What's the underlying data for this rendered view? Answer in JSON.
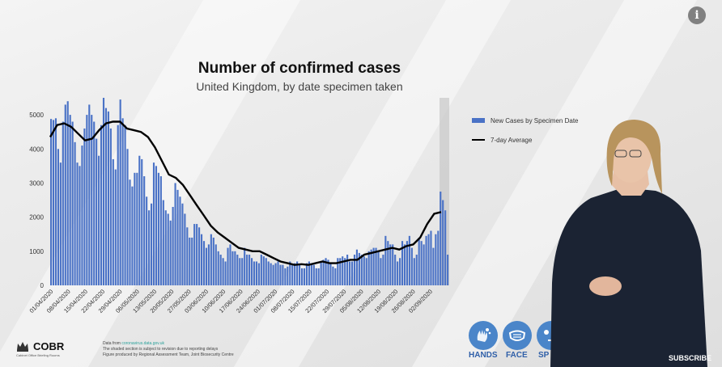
{
  "chart_data": {
    "type": "bar",
    "title": "Number of confirmed cases",
    "subtitle": "United Kingdom, by date specimen taken",
    "ylim": [
      0,
      5500
    ],
    "yticks": [
      0,
      1000,
      2000,
      3000,
      4000,
      5000
    ],
    "x_tick_labels": [
      "01/04/2020",
      "08/04/2020",
      "15/04/2020",
      "22/04/2020",
      "29/04/2020",
      "06/05/2020",
      "13/05/2020",
      "20/05/2020",
      "27/05/2020",
      "03/06/2020",
      "10/06/2020",
      "17/06/2020",
      "24/06/2020",
      "01/07/2020",
      "08/07/2020",
      "15/07/2020",
      "22/07/2020",
      "29/07/2020",
      "05/08/2020",
      "12/08/2020",
      "19/08/2020",
      "26/08/2020",
      "02/09/2020"
    ],
    "grid": false,
    "legend_position": "right",
    "shaded_region": "last few days (incomplete reporting)",
    "series": [
      {
        "name": "New Cases by Specimen Date",
        "type": "bar",
        "color": "#4a72c6",
        "values": [
          4880,
          4850,
          4900,
          4000,
          3600,
          4800,
          5300,
          5400,
          5000,
          4800,
          4200,
          3600,
          3500,
          4100,
          4600,
          5000,
          5300,
          5000,
          4800,
          4300,
          3800,
          4700,
          5500,
          5200,
          5100,
          4600,
          3700,
          3400,
          4700,
          5450,
          4900,
          4700,
          4000,
          3100,
          2900,
          3300,
          3300,
          3800,
          3700,
          3200,
          2600,
          2200,
          2400,
          3600,
          3500,
          3300,
          3200,
          2500,
          2200,
          2100,
          1900,
          2300,
          3000,
          2800,
          2600,
          2400,
          2100,
          1700,
          1400,
          1400,
          1800,
          1800,
          1700,
          1500,
          1300,
          1100,
          1200,
          1500,
          1400,
          1200,
          1000,
          900,
          800,
          700,
          1100,
          1200,
          1000,
          1000,
          900,
          800,
          800,
          1100,
          900,
          900,
          800,
          700,
          700,
          650,
          900,
          850,
          800,
          700,
          650,
          600,
          650,
          700,
          600,
          600,
          500,
          550,
          700,
          600,
          650,
          700,
          600,
          500,
          500,
          650,
          700,
          650,
          600,
          500,
          500,
          700,
          750,
          800,
          750,
          650,
          550,
          500,
          800,
          800,
          850,
          800,
          900,
          700,
          700,
          900,
          1050,
          950,
          900,
          850,
          800,
          1000,
          1050,
          1100,
          1100,
          1000,
          800,
          900,
          1450,
          1300,
          1200,
          1200,
          900,
          700,
          800,
          1300,
          1200,
          1300,
          1450,
          1100,
          800,
          900,
          1400,
          1300,
          1200,
          1450,
          1500,
          1600,
          1100,
          1500,
          1600,
          2750,
          2500,
          2200,
          900
        ]
      },
      {
        "name": "7-day Average",
        "type": "line",
        "color": "#000000",
        "values": [
          4350,
          4700,
          4750,
          4650,
          4450,
          4250,
          4300,
          4550,
          4750,
          4800,
          4800,
          4600,
          4550,
          4500,
          4350,
          4050,
          3650,
          3250,
          3150,
          2950,
          2650,
          2350,
          2050,
          1750,
          1550,
          1400,
          1250,
          1100,
          1050,
          1000,
          1000,
          900,
          800,
          700,
          650,
          600,
          620,
          600,
          650,
          700,
          650,
          650,
          700,
          750,
          750,
          900,
          950,
          1000,
          1050,
          1100,
          1050,
          1150,
          1200,
          1400,
          1800,
          2100,
          2150
        ]
      }
    ]
  },
  "legend": {
    "bars_label": "New Cases by Specimen Date",
    "line_label": "7-day Average"
  },
  "footer": {
    "org_name": "COBR",
    "org_sub": "Cabinet Office Briefing Rooms",
    "data_from_prefix": "Data from",
    "data_from_link": "coronavirus.data.gov.uk",
    "shaded_note": "The shaded section is subject to revision due to reporting delays",
    "produced_by": "Figure produced by Regional Assessment Team, Joint Biosecurity Centre"
  },
  "badges": [
    {
      "label": "HANDS",
      "icon": "hands-icon"
    },
    {
      "label": "FACE",
      "icon": "face-mask-icon"
    },
    {
      "label": "SP",
      "icon": "space-icon"
    }
  ],
  "overlay": {
    "subscribe_label": "SUBSCRIBE",
    "info_label": "i"
  },
  "colors": {
    "bar": "#4a72c6",
    "line": "#000000",
    "badge": "#4a85c9",
    "badge_label": "#2f5fa8"
  }
}
